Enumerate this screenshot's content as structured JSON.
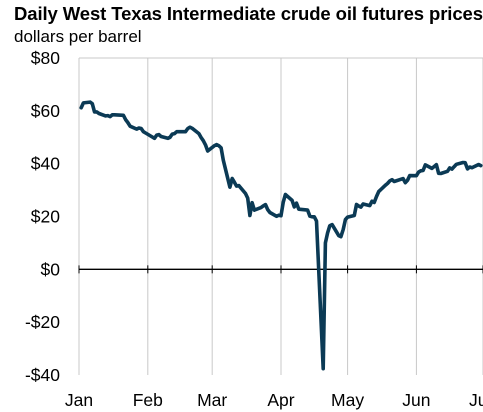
{
  "chart_data": {
    "type": "line",
    "title": "Daily West Texas Intermediate crude oil futures prices",
    "subtitle": "dollars per barrel",
    "xlabel": "",
    "ylabel": "",
    "ylim": [
      -40,
      80
    ],
    "yticks": [
      80,
      60,
      40,
      20,
      0,
      -20,
      -40
    ],
    "ytick_labels": [
      "$80",
      "$60",
      "$40",
      "$20",
      "$0",
      "-$20",
      "-$40"
    ],
    "xlim": [
      "2020-01-01",
      "2020-07-01"
    ],
    "xticks": [
      "2020-01-01",
      "2020-02-01",
      "2020-03-01",
      "2020-04-01",
      "2020-05-01",
      "2020-06-01",
      "2020-07-01"
    ],
    "xtick_labels": [
      "Jan",
      "Feb",
      "Mar",
      "Apr",
      "May",
      "Jun",
      "Jul"
    ],
    "grid": "vertical",
    "line_color": "#0b3a55",
    "series": [
      {
        "name": "",
        "points": [
          [
            "2020-01-02",
            61.2
          ],
          [
            "2020-01-03",
            63.0
          ],
          [
            "2020-01-06",
            63.3
          ],
          [
            "2020-01-07",
            62.7
          ],
          [
            "2020-01-08",
            59.6
          ],
          [
            "2020-01-09",
            59.6
          ],
          [
            "2020-01-10",
            59.0
          ],
          [
            "2020-01-13",
            58.1
          ],
          [
            "2020-01-14",
            58.2
          ],
          [
            "2020-01-15",
            57.8
          ],
          [
            "2020-01-16",
            58.5
          ],
          [
            "2020-01-17",
            58.5
          ],
          [
            "2020-01-21",
            58.3
          ],
          [
            "2020-01-22",
            56.7
          ],
          [
            "2020-01-23",
            55.6
          ],
          [
            "2020-01-24",
            54.2
          ],
          [
            "2020-01-27",
            53.1
          ],
          [
            "2020-01-28",
            53.5
          ],
          [
            "2020-01-29",
            53.3
          ],
          [
            "2020-01-30",
            52.1
          ],
          [
            "2020-01-31",
            51.6
          ],
          [
            "2020-02-03",
            50.1
          ],
          [
            "2020-02-04",
            49.6
          ],
          [
            "2020-02-05",
            50.8
          ],
          [
            "2020-02-06",
            51.0
          ],
          [
            "2020-02-07",
            50.3
          ],
          [
            "2020-02-10",
            49.6
          ],
          [
            "2020-02-11",
            50.0
          ],
          [
            "2020-02-12",
            51.2
          ],
          [
            "2020-02-13",
            51.4
          ],
          [
            "2020-02-14",
            52.1
          ],
          [
            "2020-02-18",
            52.1
          ],
          [
            "2020-02-19",
            53.3
          ],
          [
            "2020-02-20",
            53.8
          ],
          [
            "2020-02-21",
            53.4
          ],
          [
            "2020-02-24",
            51.4
          ],
          [
            "2020-02-25",
            49.9
          ],
          [
            "2020-02-26",
            48.7
          ],
          [
            "2020-02-27",
            47.1
          ],
          [
            "2020-02-28",
            44.8
          ],
          [
            "2020-03-02",
            46.8
          ],
          [
            "2020-03-03",
            47.2
          ],
          [
            "2020-03-04",
            46.8
          ],
          [
            "2020-03-05",
            46.0
          ],
          [
            "2020-03-06",
            41.3
          ],
          [
            "2020-03-09",
            31.1
          ],
          [
            "2020-03-10",
            34.4
          ],
          [
            "2020-03-11",
            32.98
          ],
          [
            "2020-03-12",
            31.5
          ],
          [
            "2020-03-13",
            31.7
          ],
          [
            "2020-03-16",
            28.7
          ],
          [
            "2020-03-17",
            26.95
          ],
          [
            "2020-03-18",
            20.37
          ],
          [
            "2020-03-19",
            25.22
          ],
          [
            "2020-03-20",
            22.43
          ],
          [
            "2020-03-23",
            23.36
          ],
          [
            "2020-03-24",
            24.01
          ],
          [
            "2020-03-25",
            24.49
          ],
          [
            "2020-03-26",
            22.6
          ],
          [
            "2020-03-27",
            21.51
          ],
          [
            "2020-03-30",
            20.09
          ],
          [
            "2020-03-31",
            20.48
          ],
          [
            "2020-04-01",
            20.31
          ],
          [
            "2020-04-02",
            25.32
          ],
          [
            "2020-04-03",
            28.34
          ],
          [
            "2020-04-06",
            26.08
          ],
          [
            "2020-04-07",
            23.63
          ],
          [
            "2020-04-08",
            25.09
          ],
          [
            "2020-04-09",
            22.76
          ],
          [
            "2020-04-13",
            22.41
          ],
          [
            "2020-04-14",
            20.11
          ],
          [
            "2020-04-15",
            19.87
          ],
          [
            "2020-04-16",
            19.87
          ],
          [
            "2020-04-17",
            18.27
          ],
          [
            "2020-04-20",
            -37.63
          ],
          [
            "2020-04-21",
            10.01
          ],
          [
            "2020-04-22",
            13.78
          ],
          [
            "2020-04-23",
            16.5
          ],
          [
            "2020-04-24",
            16.94
          ],
          [
            "2020-04-27",
            12.78
          ],
          [
            "2020-04-28",
            12.34
          ],
          [
            "2020-04-29",
            15.06
          ],
          [
            "2020-04-30",
            18.84
          ],
          [
            "2020-05-01",
            19.78
          ],
          [
            "2020-05-04",
            20.39
          ],
          [
            "2020-05-05",
            24.56
          ],
          [
            "2020-05-06",
            23.99
          ],
          [
            "2020-05-07",
            23.55
          ],
          [
            "2020-05-08",
            24.74
          ],
          [
            "2020-05-11",
            24.14
          ],
          [
            "2020-05-12",
            25.78
          ],
          [
            "2020-05-13",
            25.29
          ],
          [
            "2020-05-14",
            27.56
          ],
          [
            "2020-05-15",
            29.43
          ],
          [
            "2020-05-18",
            31.82
          ],
          [
            "2020-05-19",
            32.5
          ],
          [
            "2020-05-20",
            33.49
          ],
          [
            "2020-05-21",
            33.92
          ],
          [
            "2020-05-22",
            33.25
          ],
          [
            "2020-05-26",
            34.35
          ],
          [
            "2020-05-27",
            32.81
          ],
          [
            "2020-05-28",
            33.71
          ],
          [
            "2020-05-29",
            35.49
          ],
          [
            "2020-06-01",
            35.44
          ],
          [
            "2020-06-02",
            36.81
          ],
          [
            "2020-06-03",
            37.29
          ],
          [
            "2020-06-04",
            37.41
          ],
          [
            "2020-06-05",
            39.55
          ],
          [
            "2020-06-08",
            38.19
          ],
          [
            "2020-06-09",
            38.94
          ],
          [
            "2020-06-10",
            39.6
          ],
          [
            "2020-06-11",
            36.34
          ],
          [
            "2020-06-12",
            36.26
          ],
          [
            "2020-06-15",
            37.12
          ],
          [
            "2020-06-16",
            38.38
          ],
          [
            "2020-06-17",
            37.96
          ],
          [
            "2020-06-18",
            38.84
          ],
          [
            "2020-06-19",
            39.75
          ],
          [
            "2020-06-22",
            40.46
          ],
          [
            "2020-06-23",
            40.37
          ],
          [
            "2020-06-24",
            38.01
          ],
          [
            "2020-06-25",
            38.72
          ],
          [
            "2020-06-26",
            38.49
          ],
          [
            "2020-06-29",
            39.7
          ],
          [
            "2020-06-30",
            39.27
          ]
        ]
      }
    ]
  }
}
